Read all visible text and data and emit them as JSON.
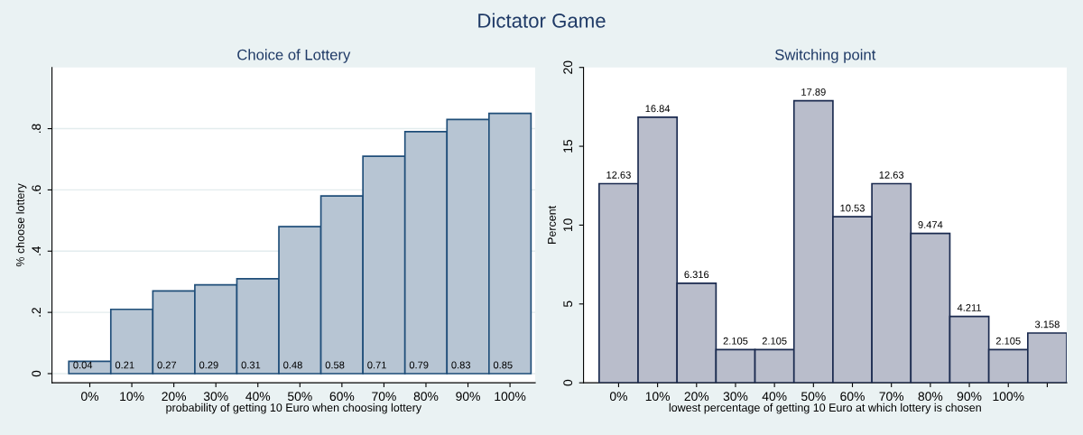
{
  "chart_data": [
    {
      "type": "bar",
      "title": "Choice of Lottery",
      "annotations": [
        "Dictator Game"
      ],
      "xlabel": "probability of getting 10 Euro when choosing lottery",
      "ylabel": "% choose lottery",
      "categories": [
        "0%",
        "10%",
        "20%",
        "30%",
        "40%",
        "50%",
        "60%",
        "70%",
        "80%",
        "90%",
        "100%"
      ],
      "values": [
        0.04,
        0.21,
        0.27,
        0.29,
        0.31,
        0.48,
        0.58,
        0.71,
        0.79,
        0.83,
        0.85
      ],
      "color": "#b7c5d3",
      "ylim": [
        -0.03,
        1.0
      ],
      "yticks": [
        0,
        {
          "value": 0.2,
          "label": ".2"
        },
        {
          "value": 0.4,
          "label": ".4"
        },
        {
          "value": 0.6,
          "label": ".6"
        },
        {
          "value": 0.8,
          "label": ".8"
        }
      ],
      "grid": "y",
      "data_labels": true
    },
    {
      "type": "bar",
      "title": "Switching point",
      "xlabel": "lowest percentage of getting 10 Euro at which lottery is chosen",
      "ylabel": "Percent",
      "categories": [
        "0%",
        "10%",
        "20%",
        "30%",
        "40%",
        "50%",
        "60%",
        "70%",
        "80%",
        "90%",
        "100%",
        null
      ],
      "values": [
        12.63,
        16.84,
        6.316,
        2.105,
        2.105,
        17.89,
        10.53,
        12.63,
        9.474,
        4.211,
        2.105,
        3.158
      ],
      "color": "#b9bdcb",
      "ylim": [
        0,
        20
      ],
      "yticks": [
        0,
        5,
        10,
        15,
        20
      ],
      "data_labels": true
    }
  ]
}
